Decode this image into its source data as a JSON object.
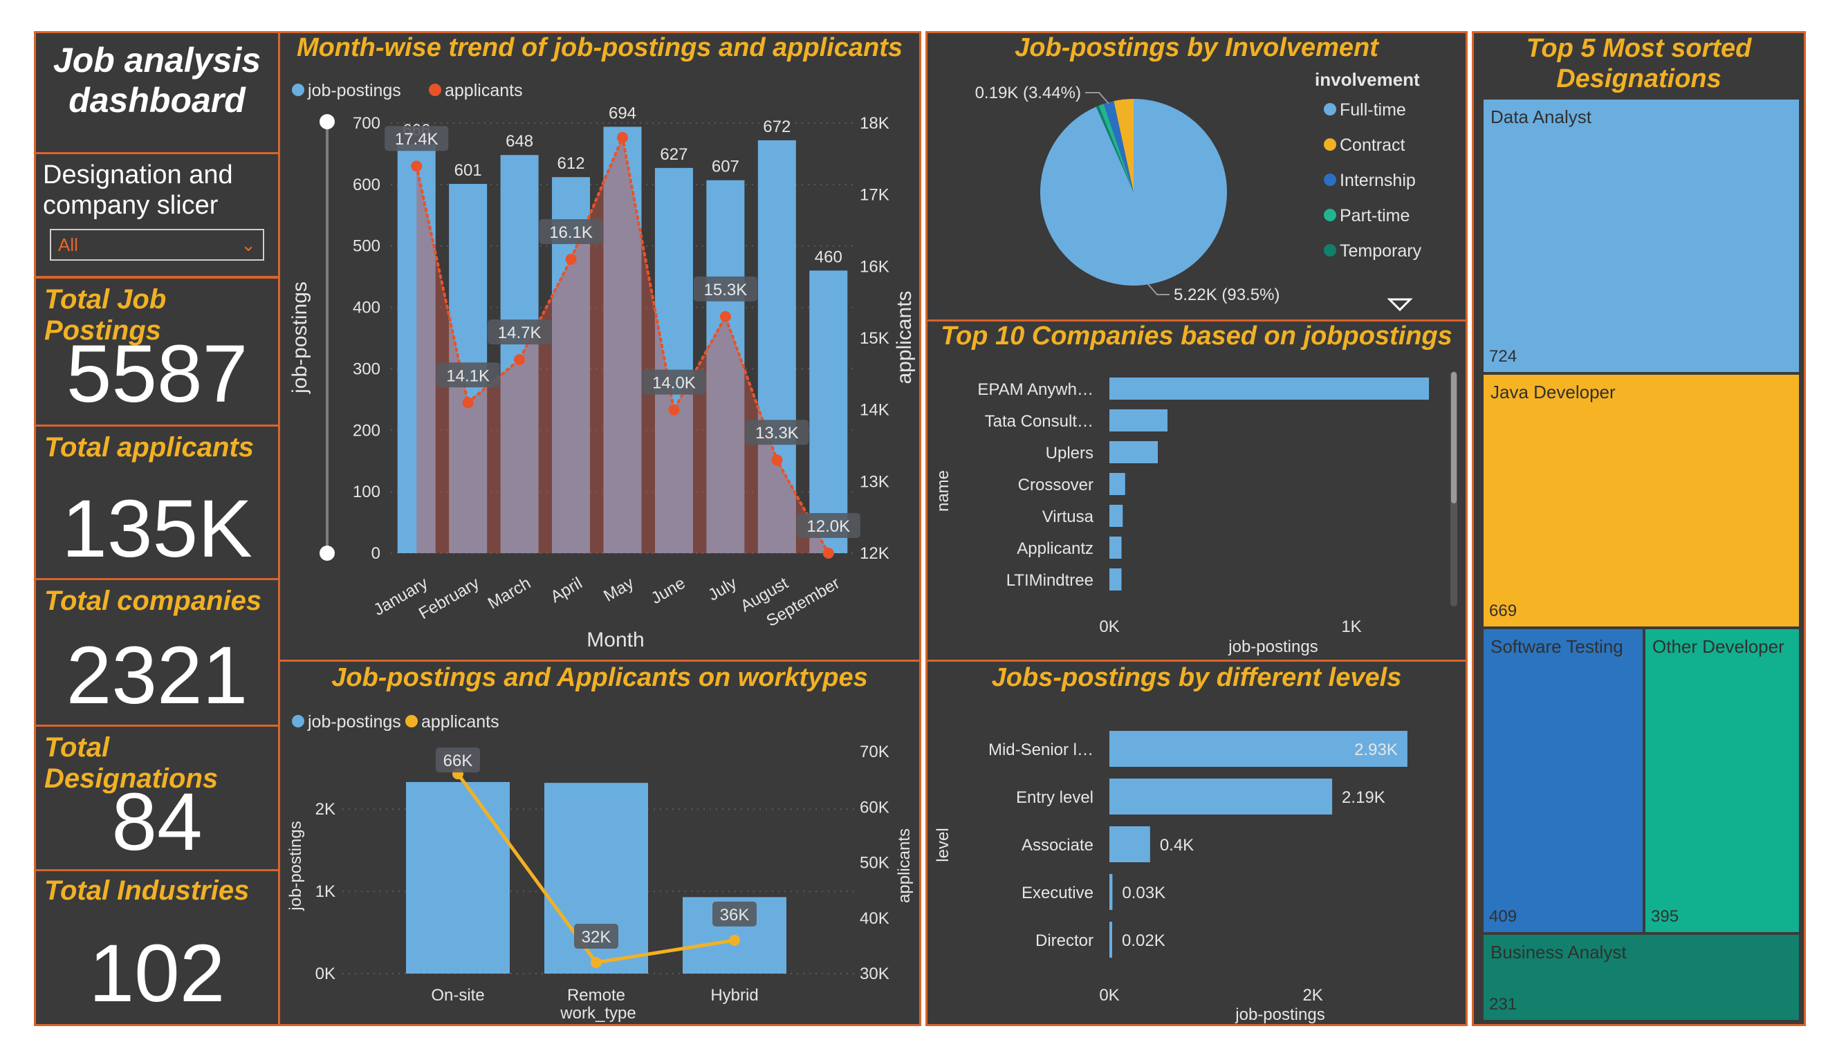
{
  "dashboard_title": "Job analysis dashboard",
  "slicer": {
    "label": "Designation and company slicer",
    "value": "All"
  },
  "kpis": [
    {
      "label": "Total Job Postings",
      "value": "5587"
    },
    {
      "label": "Total applicants",
      "value": "135K"
    },
    {
      "label": "Total companies",
      "value": "2321"
    },
    {
      "label": "Total Designations",
      "value": "84"
    },
    {
      "label": "Total Industries",
      "value": "102"
    }
  ],
  "colors": {
    "panel_bg": "#3a3a3a",
    "border": "#d9642b",
    "title": "#f2b124",
    "bar": "#6aaee0",
    "applicants_line": "#e8532a",
    "worktype_line": "#f2b124"
  },
  "chart_data": [
    {
      "type": "bar",
      "title": "Month-wise trend of job-postings and applicants",
      "xlabel": "Month",
      "ylabel": "job-postings",
      "y2label": "applicants",
      "legend": [
        "job-postings",
        "applicants"
      ],
      "legend_position": "top-left",
      "categories": [
        "January",
        "February",
        "March",
        "April",
        "May",
        "June",
        "July",
        "August",
        "September"
      ],
      "series": [
        {
          "name": "job-postings",
          "type": "bar",
          "axis": "left",
          "values": [
            666,
            601,
            648,
            612,
            694,
            627,
            607,
            672,
            460
          ],
          "labels": [
            "666",
            "601",
            "648",
            "612",
            "694",
            "627",
            "607",
            "672",
            "460"
          ]
        },
        {
          "name": "applicants",
          "type": "line",
          "axis": "right",
          "values": [
            17400,
            14100,
            14700,
            16100,
            17800,
            14000,
            15300,
            13300,
            12000
          ],
          "labels": [
            "17.4K",
            "14.1K",
            "14.7K",
            "16.1K",
            "",
            "14.0K",
            "15.3K",
            "13.3K",
            "12.0K"
          ]
        }
      ],
      "ylim": [
        0,
        700
      ],
      "yticks": [
        "0",
        "100",
        "200",
        "300",
        "400",
        "500",
        "600",
        "700"
      ],
      "y2lim": [
        12000,
        18000
      ],
      "y2ticks": [
        "12K",
        "13K",
        "14K",
        "15K",
        "16K",
        "17K",
        "18K"
      ],
      "grid": true
    },
    {
      "type": "pie",
      "title": "Job-postings by Involvement",
      "legend_title": "involvement",
      "legend_position": "right",
      "categories": [
        "Full-time",
        "Contract",
        "Internship",
        "Part-time",
        "Temporary"
      ],
      "values": [
        5220,
        190,
        100,
        50,
        27
      ],
      "colors": [
        "#6aaee0",
        "#f2b124",
        "#2a6fc2",
        "#22b48f",
        "#12806d"
      ],
      "annotations": [
        "0.19K (3.44%)",
        "5.22K (93.5%)"
      ]
    },
    {
      "type": "bar",
      "orientation": "horizontal",
      "title": "Top 10 Companies based on jobpostings",
      "xlabel": "job-postings",
      "ylabel": "name",
      "categories": [
        "EPAM Anywh…",
        "Tata Consult…",
        "Uplers",
        "Crossover",
        "Virtusa",
        "Applicantz",
        "LTIMindtree"
      ],
      "values": [
        1320,
        240,
        200,
        65,
        55,
        50,
        50
      ],
      "xticks": [
        "0K",
        "1K"
      ],
      "xlim": [
        0,
        1600
      ]
    },
    {
      "type": "bar",
      "title": "Job-postings and Applicants on worktypes",
      "xlabel": "work_type",
      "ylabel": "job-postings",
      "y2label": "applicants",
      "legend": [
        "job-postings",
        "applicants"
      ],
      "legend_position": "top-left",
      "categories": [
        "On-site",
        "Remote",
        "Hybrid"
      ],
      "series": [
        {
          "name": "job-postings",
          "type": "bar",
          "axis": "left",
          "values": [
            2330,
            2320,
            930
          ]
        },
        {
          "name": "applicants",
          "type": "line",
          "axis": "right",
          "values": [
            66000,
            32000,
            36000
          ],
          "labels": [
            "66K",
            "32K",
            "36K"
          ]
        }
      ],
      "ylim": [
        0,
        2700
      ],
      "yticks": [
        "0K",
        "1K",
        "2K"
      ],
      "y2lim": [
        30000,
        70000
      ],
      "y2ticks": [
        "30K",
        "40K",
        "50K",
        "60K",
        "70K"
      ],
      "grid": true
    },
    {
      "type": "bar",
      "orientation": "horizontal",
      "title": "Jobs-postings by different levels",
      "xlabel": "job-postings",
      "ylabel": "level",
      "categories": [
        "Mid-Senior l…",
        "Entry level",
        "Associate",
        "Executive",
        "Director"
      ],
      "values": [
        2930,
        2190,
        400,
        30,
        20
      ],
      "labels": [
        "2.93K",
        "2.19K",
        "0.4K",
        "0.03K",
        "0.02K"
      ],
      "xticks": [
        "0K",
        "2K"
      ],
      "xlim": [
        0,
        3400
      ]
    },
    {
      "type": "treemap",
      "title": "Top 5 Most sorted Designations",
      "categories": [
        "Data Analyst",
        "Java Developer",
        "Software Testing",
        "Other Developer",
        "Business Analyst"
      ],
      "values": [
        724,
        669,
        409,
        395,
        231
      ],
      "colors": [
        "#6aaee0",
        "#f6b324",
        "#2b74c0",
        "#11b08f",
        "#12806c"
      ]
    }
  ]
}
